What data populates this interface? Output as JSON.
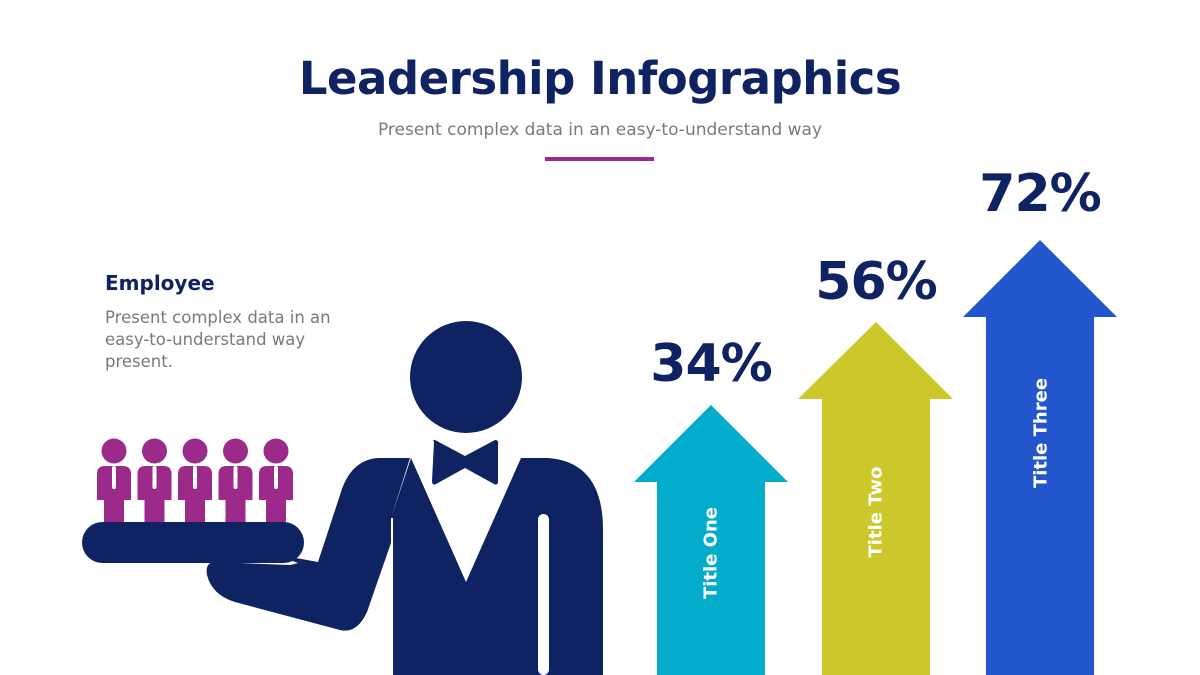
{
  "header": {
    "title": "Leadership Infographics",
    "subtitle": "Present complex data in an easy-to-understand way",
    "rule_color": "#9b2a8a"
  },
  "employee": {
    "title": "Employee",
    "description": "Present complex data in an easy-to-understand way present.",
    "people_count": 5,
    "people_color": "#9b2a8a",
    "figure_color": "#0f2261",
    "icon": "waiter-serving-employees-icon"
  },
  "chart_data": {
    "type": "bar",
    "style": "upward-arrows",
    "title": "Leadership Infographics",
    "categories": [
      "Title One",
      "Title Two",
      "Title Three"
    ],
    "values": [
      34,
      56,
      72
    ],
    "value_labels": [
      "34%",
      "56%",
      "72%"
    ],
    "unit": "%",
    "colors": [
      "#03acca",
      "#ccc72a",
      "#2356cc"
    ],
    "xlabel": "",
    "ylabel": "",
    "grid": false,
    "legend": "none"
  },
  "arrows": [
    {
      "label": "Title One",
      "value": "34%",
      "color": "#03acca"
    },
    {
      "label": "Title Two",
      "value": "56%",
      "color": "#ccc72a"
    },
    {
      "label": "Title Three",
      "value": "72%",
      "color": "#2356cc"
    }
  ]
}
